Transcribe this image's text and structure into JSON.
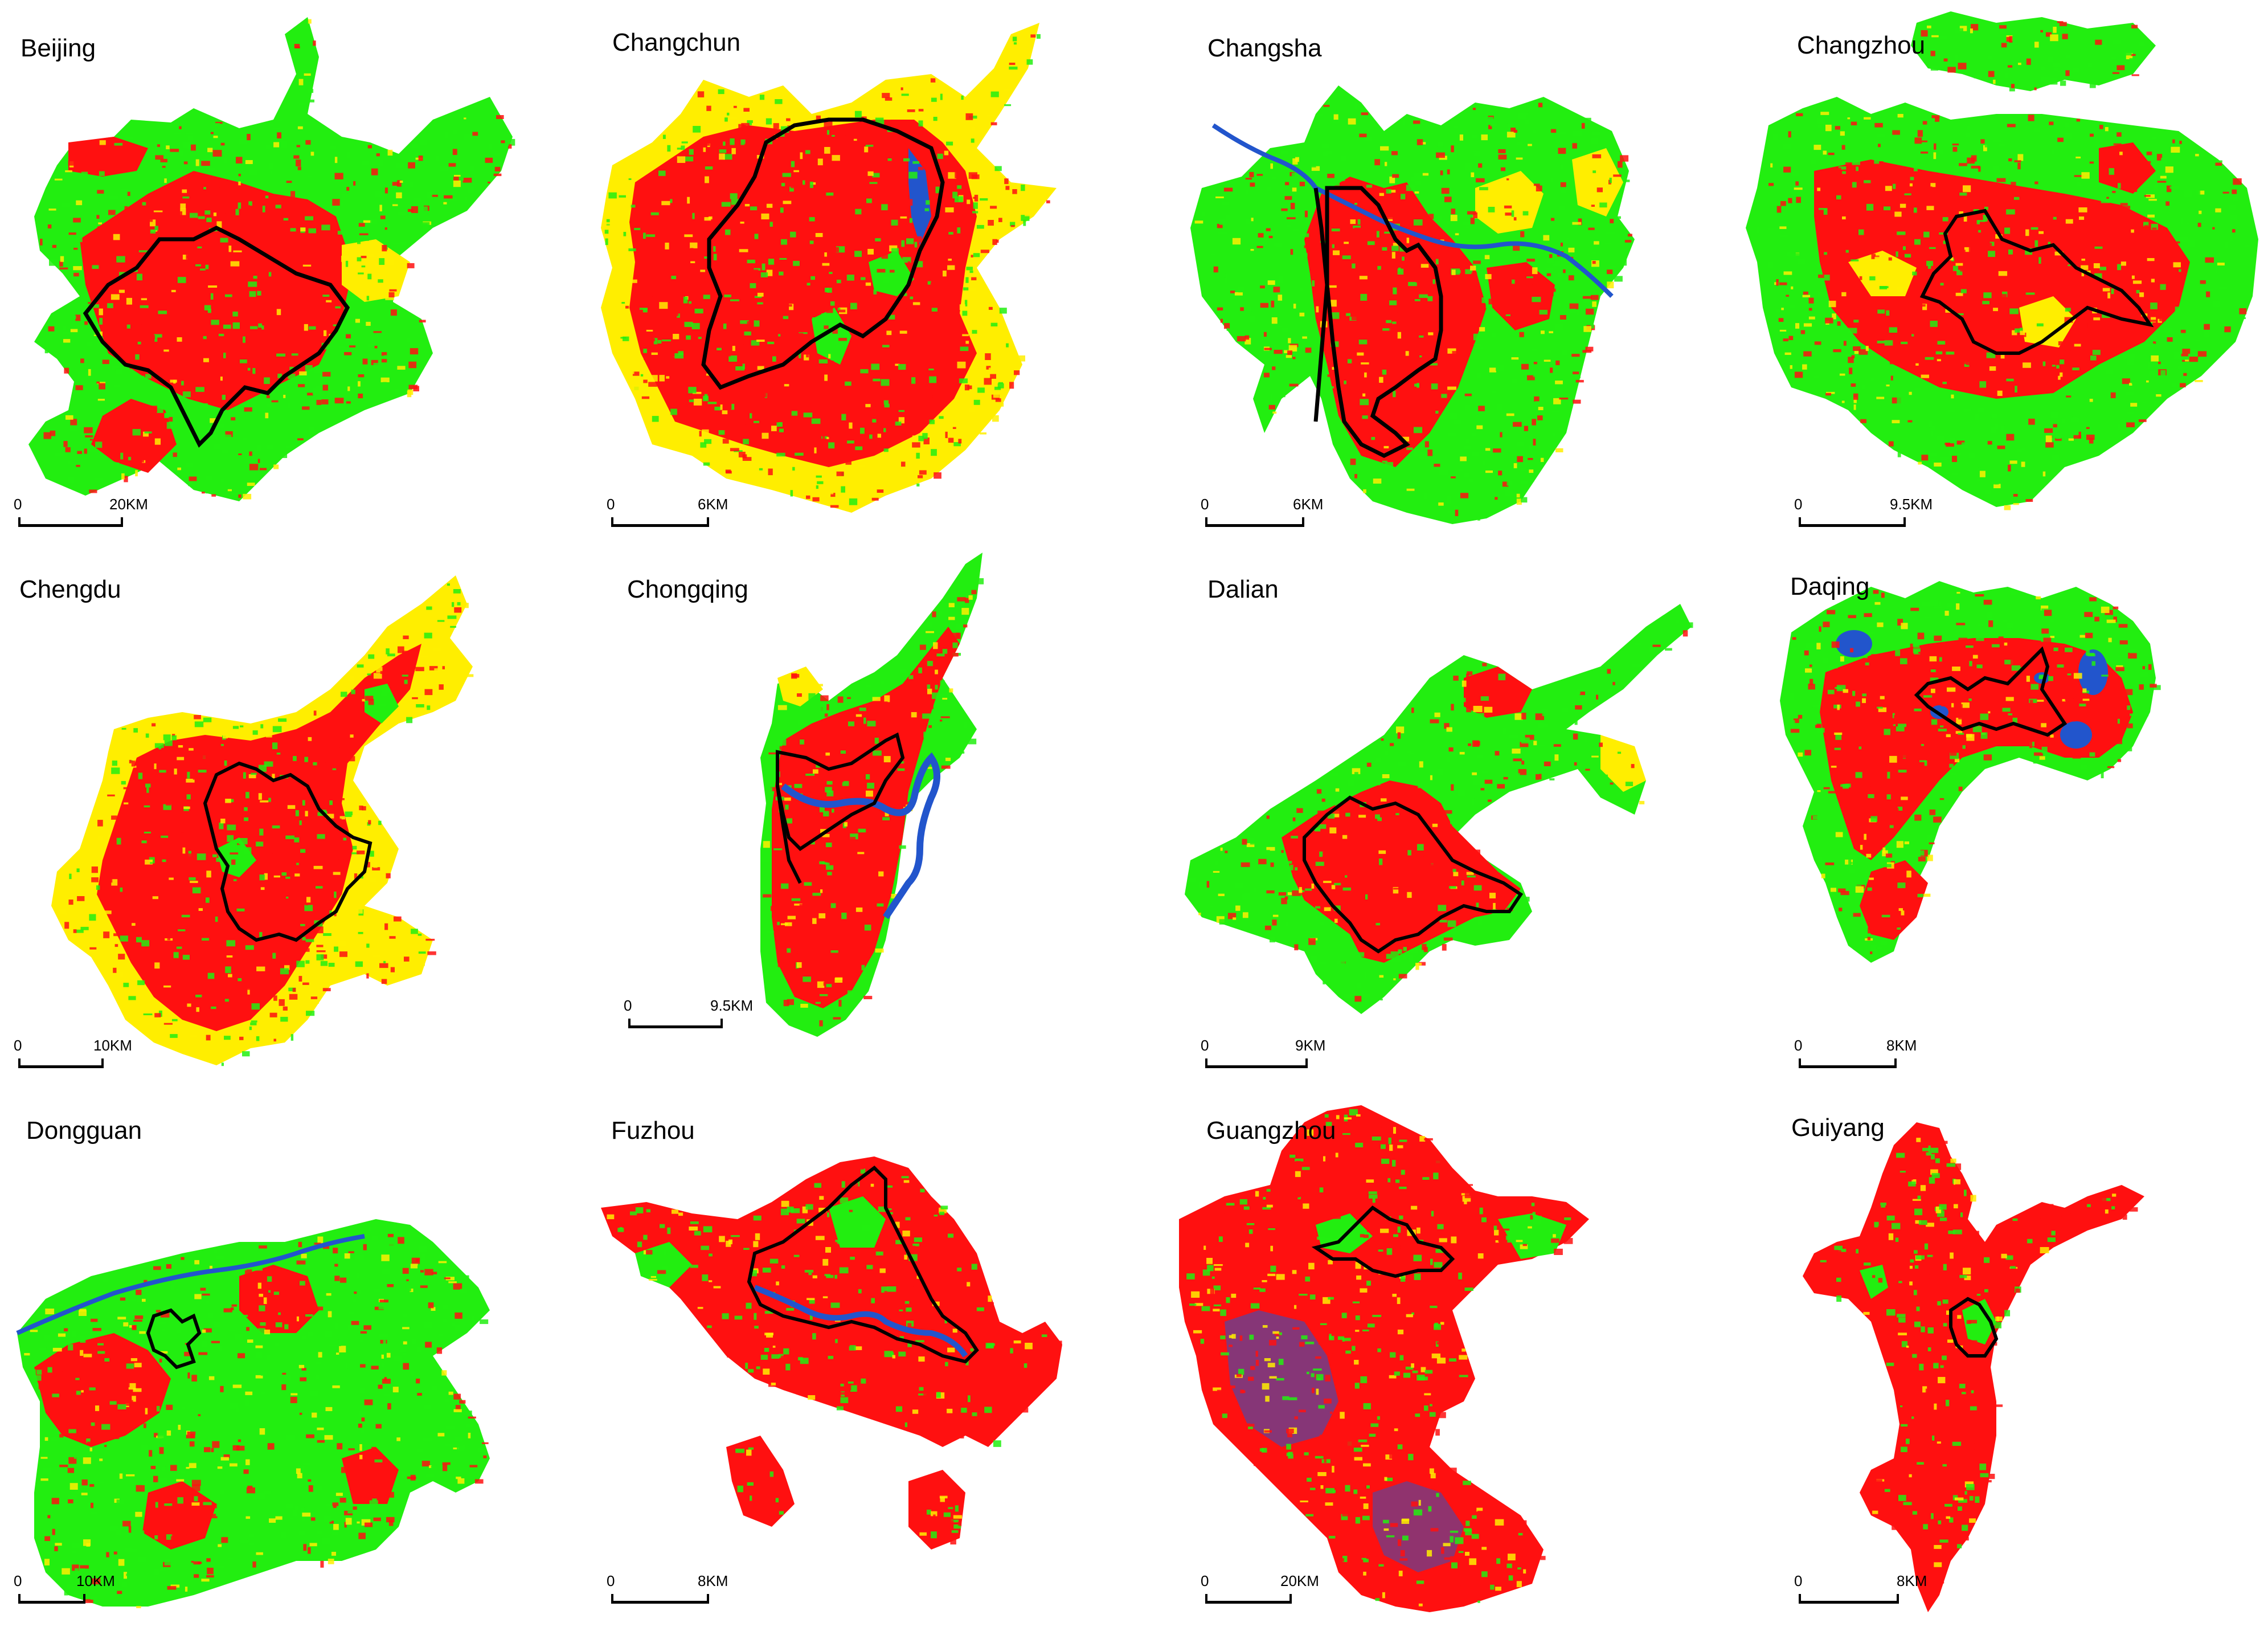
{
  "colors": {
    "red": "#ff1010",
    "green": "#22ee10",
    "yellow": "#ffee00",
    "blue": "#2255cc",
    "boundary": "#000000"
  },
  "panels": [
    {
      "id": "beijing",
      "title": "Beijing",
      "scale": {
        "zero": "0",
        "distance": "20KM"
      }
    },
    {
      "id": "changchun",
      "title": "Changchun",
      "scale": {
        "zero": "0",
        "distance": "6KM"
      }
    },
    {
      "id": "changsha",
      "title": "Changsha",
      "scale": {
        "zero": "0",
        "distance": "6KM"
      }
    },
    {
      "id": "changzhou",
      "title": "Changzhou",
      "scale": {
        "zero": "0",
        "distance": "9.5KM"
      }
    },
    {
      "id": "chengdu",
      "title": "Chengdu",
      "scale": {
        "zero": "0",
        "distance": "10KM"
      }
    },
    {
      "id": "chongqing",
      "title": "Chongqing",
      "scale": {
        "zero": "0",
        "distance": "9.5KM"
      }
    },
    {
      "id": "dalian",
      "title": "Dalian",
      "scale": {
        "zero": "0",
        "distance": "9KM"
      }
    },
    {
      "id": "daqing",
      "title": "Daqing",
      "scale": {
        "zero": "0",
        "distance": "8KM"
      }
    },
    {
      "id": "dongguan",
      "title": "Dongguan",
      "scale": {
        "zero": "0",
        "distance": "10KM"
      }
    },
    {
      "id": "fuzhou",
      "title": "Fuzhou",
      "scale": {
        "zero": "0",
        "distance": "8KM"
      }
    },
    {
      "id": "guangzhou",
      "title": "Guangzhou",
      "scale": {
        "zero": "0",
        "distance": "20KM"
      }
    },
    {
      "id": "guiyang",
      "title": "Guiyang",
      "scale": {
        "zero": "0",
        "distance": "8KM"
      }
    }
  ]
}
